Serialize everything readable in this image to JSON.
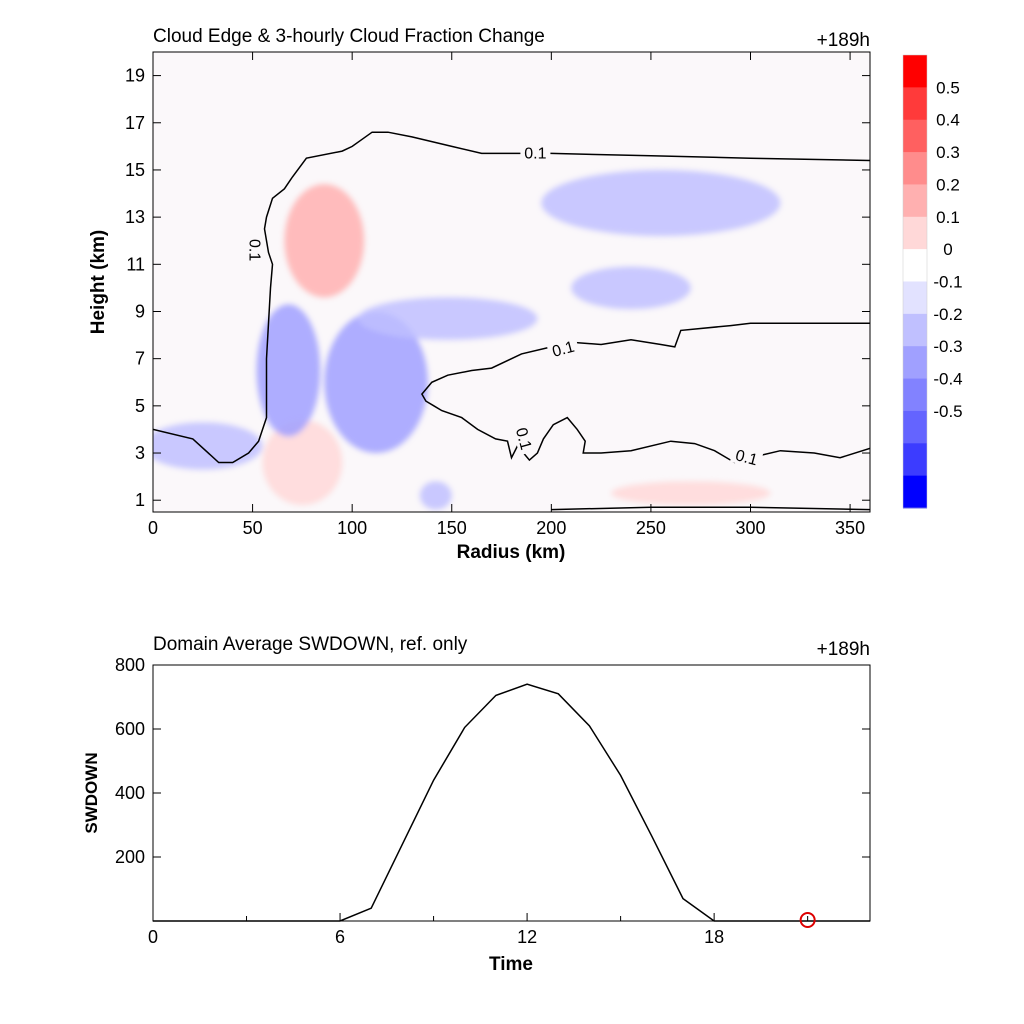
{
  "chart_data": [
    {
      "type": "heatmap",
      "title": "Cloud Edge & 3-hourly Cloud Fraction Change",
      "time_label": "+189h",
      "xlabel": "Radius (km)",
      "ylabel": "Height (km)",
      "xlim": [
        0,
        360
      ],
      "ylim": [
        0.5,
        20
      ],
      "xticks": [
        "0",
        "50",
        "100",
        "150",
        "200",
        "250",
        "300",
        "350"
      ],
      "yticks": [
        "1",
        "3",
        "5",
        "7",
        "9",
        "11",
        "13",
        "15",
        "17",
        "19"
      ],
      "colorbar": {
        "levels": [
          "0.5",
          "0.4",
          "0.3",
          "0.2",
          "0.1",
          "0",
          "-0.1",
          "-0.2",
          "-0.3",
          "-0.4",
          "-0.5"
        ],
        "colors": [
          "#ff0000",
          "#ff3a3a",
          "#ff6060",
          "#ff8c8c",
          "#ffb0b0",
          "#ffd8d8",
          "#ffffff",
          "#e2e2ff",
          "#c0c0ff",
          "#a0a0ff",
          "#8282ff",
          "#6464ff",
          "#3c3cff",
          "#0000ff"
        ],
        "range": [
          -0.55,
          0.55
        ]
      },
      "contour_level_label": "0.1",
      "anomalies": [
        {
          "kind": "negative",
          "x": 25,
          "y": 3.3,
          "rx": 30,
          "ry": 1.0,
          "value": -0.15
        },
        {
          "kind": "positive",
          "x": 75,
          "y": 2.6,
          "rx": 20,
          "ry": 1.8,
          "value": 0.12
        },
        {
          "kind": "negative",
          "x": 68,
          "y": 6.5,
          "rx": 16,
          "ry": 2.8,
          "value": -0.2
        },
        {
          "kind": "positive",
          "x": 86,
          "y": 12.0,
          "rx": 20,
          "ry": 2.4,
          "value": 0.18
        },
        {
          "kind": "negative",
          "x": 112,
          "y": 6.0,
          "rx": 26,
          "ry": 3.0,
          "value": -0.18
        },
        {
          "kind": "negative",
          "x": 148,
          "y": 8.7,
          "rx": 45,
          "ry": 0.9,
          "value": -0.12
        },
        {
          "kind": "negative",
          "x": 255,
          "y": 13.6,
          "rx": 60,
          "ry": 1.4,
          "value": -0.12
        },
        {
          "kind": "negative",
          "x": 240,
          "y": 10.0,
          "rx": 30,
          "ry": 0.9,
          "value": -0.14
        },
        {
          "kind": "negative",
          "x": 142,
          "y": 1.2,
          "rx": 8,
          "ry": 0.6,
          "value": -0.15
        },
        {
          "kind": "positive",
          "x": 270,
          "y": 1.3,
          "rx": 40,
          "ry": 0.5,
          "value": 0.08
        }
      ],
      "contours": [
        [
          [
            0,
            4.0
          ],
          [
            20,
            3.6
          ],
          [
            33,
            2.6
          ],
          [
            40,
            2.6
          ],
          [
            48,
            3.0
          ],
          [
            53,
            3.5
          ],
          [
            57,
            4.5
          ],
          [
            57,
            7
          ],
          [
            58,
            8.5
          ],
          [
            59,
            10
          ],
          [
            60,
            11
          ],
          [
            58,
            11.5
          ],
          [
            56,
            12.5
          ],
          [
            57,
            13
          ],
          [
            60,
            13.8
          ],
          [
            66,
            14.2
          ],
          [
            70,
            14.7
          ],
          [
            77,
            15.5
          ],
          [
            95,
            15.8
          ],
          [
            100,
            16
          ],
          [
            105,
            16.3
          ],
          [
            110,
            16.6
          ],
          [
            118,
            16.6
          ],
          [
            130,
            16.4
          ],
          [
            150,
            16.0
          ],
          [
            165,
            15.7
          ],
          [
            200,
            15.7
          ],
          [
            250,
            15.6
          ],
          [
            300,
            15.5
          ],
          [
            360,
            15.4
          ]
        ],
        [
          [
            360,
            8.5
          ],
          [
            300,
            8.5
          ],
          [
            290,
            8.4
          ],
          [
            265,
            8.2
          ],
          [
            262,
            7.5
          ],
          [
            255,
            7.6
          ],
          [
            240,
            7.8
          ],
          [
            225,
            7.6
          ],
          [
            210,
            7.7
          ],
          [
            200,
            7.5
          ],
          [
            185,
            7.2
          ],
          [
            170,
            6.6
          ],
          [
            160,
            6.5
          ],
          [
            148,
            6.3
          ],
          [
            140,
            6.0
          ],
          [
            135,
            5.5
          ],
          [
            137,
            5.2
          ],
          [
            141,
            5.0
          ],
          [
            145,
            4.8
          ],
          [
            155,
            4.5
          ],
          [
            163,
            4.0
          ],
          [
            172,
            3.6
          ],
          [
            178,
            3.5
          ],
          [
            180,
            2.8
          ],
          [
            183,
            3.3
          ],
          [
            186,
            3.0
          ],
          [
            189,
            2.7
          ],
          [
            193,
            3.0
          ],
          [
            196,
            3.6
          ],
          [
            201,
            4.2
          ],
          [
            208,
            4.5
          ],
          [
            213,
            4.0
          ],
          [
            217,
            3.5
          ],
          [
            216,
            3.0
          ],
          [
            225,
            3.0
          ],
          [
            240,
            3.1
          ],
          [
            260,
            3.5
          ],
          [
            272,
            3.4
          ],
          [
            282,
            3.1
          ],
          [
            292,
            2.6
          ],
          [
            305,
            2.9
          ],
          [
            315,
            3.1
          ],
          [
            332,
            3.0
          ],
          [
            345,
            2.8
          ],
          [
            360,
            3.2
          ]
        ],
        [
          [
            200,
            0.6
          ],
          [
            250,
            0.7
          ],
          [
            300,
            0.7
          ],
          [
            360,
            0.6
          ]
        ]
      ]
    },
    {
      "type": "line",
      "title": "Domain Average SWDOWN, ref. only",
      "time_label": "+189h",
      "xlabel": "Time",
      "ylabel": "SWDOWN",
      "xlim": [
        0,
        23
      ],
      "ylim": [
        0,
        800
      ],
      "xticks": [
        "0",
        "6",
        "12",
        "18"
      ],
      "yticks": [
        "200",
        "400",
        "600",
        "800"
      ],
      "x": [
        0,
        1,
        2,
        3,
        4,
        5,
        6,
        7,
        8,
        9,
        10,
        11,
        12,
        13,
        14,
        15,
        16,
        17,
        18,
        19,
        20,
        21,
        22,
        23
      ],
      "values": [
        0,
        0,
        0,
        0,
        0,
        0,
        0,
        40,
        240,
        440,
        605,
        705,
        740,
        710,
        610,
        455,
        265,
        70,
        0,
        0,
        0,
        0,
        0,
        0
      ],
      "marker": {
        "x": 21,
        "y": 0,
        "color": "#dd0000"
      }
    }
  ]
}
